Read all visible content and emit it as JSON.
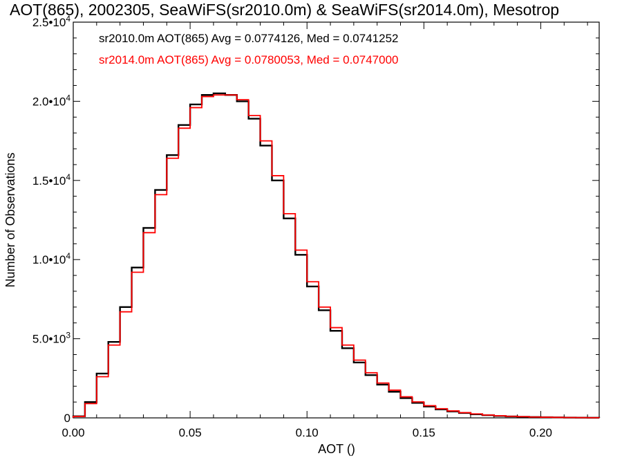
{
  "chart_data": {
    "type": "line",
    "title": "AOT(865), 2002305, SeaWiFS(sr2010.0m) & SeaWiFS(sr2014.0m), Mesotrop",
    "xlabel": "AOT ()",
    "ylabel": "Number of Observations",
    "xlim": [
      0.0,
      0.225
    ],
    "ylim": [
      0,
      25000
    ],
    "x_ticks": [
      {
        "value": 0.0,
        "label": "0.00"
      },
      {
        "value": 0.05,
        "label": "0.05"
      },
      {
        "value": 0.1,
        "label": "0.10"
      },
      {
        "value": 0.15,
        "label": "0.15"
      },
      {
        "value": 0.2,
        "label": "0.20"
      }
    ],
    "y_ticks": [
      {
        "value": 0,
        "mantissa": "0",
        "exponent": ""
      },
      {
        "value": 5000,
        "mantissa": "5.0•10",
        "exponent": "3"
      },
      {
        "value": 10000,
        "mantissa": "1.0•10",
        "exponent": "4"
      },
      {
        "value": 15000,
        "mantissa": "1.5•10",
        "exponent": "4"
      },
      {
        "value": 20000,
        "mantissa": "2.0•10",
        "exponent": "4"
      },
      {
        "value": 25000,
        "mantissa": "2.5•10",
        "exponent": "4"
      }
    ],
    "annotations": [
      "sr2010.0m AOT(865) Avg = 0.0774126, Med = 0.0741252",
      "sr2014.0m AOT(865) Avg = 0.0780053, Med = 0.0747000"
    ],
    "grid": false,
    "series": [
      {
        "color": "#000000",
        "x": [
          0.0,
          0.005,
          0.01,
          0.015,
          0.02,
          0.025,
          0.03,
          0.035,
          0.04,
          0.045,
          0.05,
          0.055,
          0.06,
          0.065,
          0.07,
          0.075,
          0.08,
          0.085,
          0.09,
          0.095,
          0.1,
          0.105,
          0.11,
          0.115,
          0.12,
          0.125,
          0.13,
          0.135,
          0.14,
          0.145,
          0.15,
          0.155,
          0.16,
          0.165,
          0.17,
          0.175,
          0.18,
          0.185,
          0.19,
          0.195,
          0.2,
          0.205,
          0.21,
          0.215,
          0.22,
          0.225
        ],
        "values": [
          100,
          1000,
          2800,
          4800,
          7000,
          9500,
          12000,
          14400,
          16600,
          18500,
          19800,
          20400,
          20500,
          20400,
          20000,
          18900,
          17200,
          15000,
          12600,
          10300,
          8300,
          6800,
          5500,
          4400,
          3500,
          2700,
          2100,
          1650,
          1250,
          950,
          720,
          540,
          410,
          310,
          230,
          170,
          125,
          90,
          70,
          50,
          38,
          28,
          20,
          15,
          10,
          8
        ]
      },
      {
        "color": "#ff0000",
        "x": [
          0.0,
          0.005,
          0.01,
          0.015,
          0.02,
          0.025,
          0.03,
          0.035,
          0.04,
          0.045,
          0.05,
          0.055,
          0.06,
          0.065,
          0.07,
          0.075,
          0.08,
          0.085,
          0.09,
          0.095,
          0.1,
          0.105,
          0.11,
          0.115,
          0.12,
          0.125,
          0.13,
          0.135,
          0.14,
          0.145,
          0.15,
          0.155,
          0.16,
          0.165,
          0.17,
          0.175,
          0.18,
          0.185,
          0.19,
          0.195,
          0.2,
          0.205,
          0.21,
          0.215,
          0.22,
          0.225
        ],
        "values": [
          90,
          900,
          2600,
          4600,
          6700,
          9200,
          11700,
          14100,
          16400,
          18300,
          19600,
          20300,
          20400,
          20400,
          20100,
          19100,
          17500,
          15300,
          12900,
          10600,
          8600,
          7000,
          5700,
          4600,
          3650,
          2850,
          2200,
          1750,
          1330,
          1010,
          770,
          580,
          440,
          330,
          250,
          180,
          135,
          98,
          75,
          55,
          40,
          30,
          22,
          16,
          11,
          8
        ]
      }
    ]
  }
}
